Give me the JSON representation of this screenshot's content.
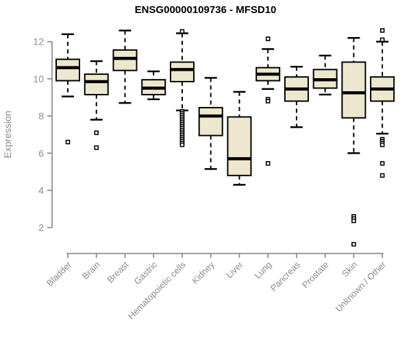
{
  "chart_data": {
    "type": "boxplot",
    "title": "ENSG00000109736 - MFSD10",
    "xlabel": "",
    "ylabel": "Expression",
    "ylim": [
      1,
      12.8
    ],
    "y_ticks": [
      2,
      4,
      6,
      8,
      10,
      12
    ],
    "grid": false,
    "legend": "none",
    "categories": [
      "Bladder",
      "Brain",
      "Breast",
      "Gastric",
      "Hematopoietic cells",
      "Kidney",
      "Liver",
      "Lung",
      "Pancreas",
      "Prostate",
      "Skin",
      "Unknown / Other"
    ],
    "series": [
      {
        "name": "Bladder",
        "whisker_low": 9.05,
        "q1": 9.9,
        "median": 10.6,
        "q3": 11.05,
        "whisker_high": 12.4,
        "outliers": [
          6.6
        ]
      },
      {
        "name": "Brain",
        "whisker_low": 7.8,
        "q1": 9.15,
        "median": 9.85,
        "q3": 10.25,
        "whisker_high": 10.95,
        "outliers": [
          7.1,
          6.3
        ]
      },
      {
        "name": "Breast",
        "whisker_low": 8.7,
        "q1": 10.45,
        "median": 11.1,
        "q3": 11.55,
        "whisker_high": 12.6,
        "outliers": []
      },
      {
        "name": "Gastric",
        "whisker_low": 8.9,
        "q1": 9.15,
        "median": 9.5,
        "q3": 9.95,
        "whisker_high": 10.4,
        "outliers": []
      },
      {
        "name": "Hematopoietic cells",
        "whisker_low": 8.3,
        "q1": 9.85,
        "median": 10.5,
        "q3": 10.9,
        "whisker_high": 12.45,
        "outliers": [
          12.55,
          8.25,
          8.15,
          8.05,
          7.95,
          7.85,
          7.75,
          7.65,
          7.55,
          7.45,
          7.35,
          7.25,
          7.15,
          7.05,
          6.95,
          6.85,
          6.75,
          6.65,
          6.55,
          6.45
        ]
      },
      {
        "name": "Kidney",
        "whisker_low": 5.15,
        "q1": 6.95,
        "median": 8.0,
        "q3": 8.45,
        "whisker_high": 10.05,
        "outliers": []
      },
      {
        "name": "Liver",
        "whisker_low": 4.3,
        "q1": 4.8,
        "median": 5.7,
        "q3": 7.95,
        "whisker_high": 9.3,
        "outliers": []
      },
      {
        "name": "Lung",
        "whisker_low": 9.45,
        "q1": 9.9,
        "median": 10.25,
        "q3": 10.6,
        "whisker_high": 11.6,
        "outliers": [
          12.15,
          8.9,
          8.8,
          5.45
        ]
      },
      {
        "name": "Pancreas",
        "whisker_low": 7.4,
        "q1": 8.8,
        "median": 9.45,
        "q3": 10.1,
        "whisker_high": 10.65,
        "outliers": []
      },
      {
        "name": "Prostate",
        "whisker_low": 9.15,
        "q1": 9.5,
        "median": 9.95,
        "q3": 10.5,
        "whisker_high": 11.25,
        "outliers": []
      },
      {
        "name": "Skin",
        "whisker_low": 6.0,
        "q1": 7.9,
        "median": 9.25,
        "q3": 10.9,
        "whisker_high": 12.2,
        "outliers": [
          2.6,
          2.48,
          2.36,
          1.1
        ]
      },
      {
        "name": "Unknown / Other",
        "whisker_low": 7.05,
        "q1": 8.8,
        "median": 9.45,
        "q3": 10.1,
        "whisker_high": 12.0,
        "outliers": [
          12.6,
          12.1,
          6.75,
          6.65,
          6.55,
          6.45,
          5.45,
          4.8
        ]
      }
    ]
  },
  "styles": {
    "background": "#ffffff",
    "box_fill": "#ede8cd",
    "box_stroke": "#000000",
    "median_color": "#000000",
    "whisker_color": "#000000",
    "outlier_stroke": "#000000",
    "outlier_fill": "#ffffff",
    "axis_color": "#8a8a8a",
    "tick_label_color": "#8a8a8a",
    "title_color": "#000000"
  }
}
